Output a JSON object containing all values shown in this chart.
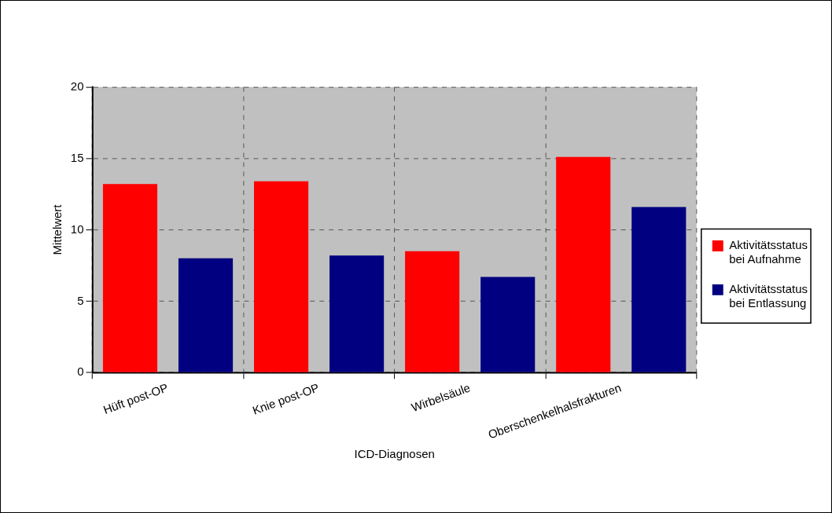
{
  "chart_data": {
    "type": "bar",
    "xlabel": "ICD-Diagnosen",
    "ylabel": "Mittelwert",
    "categories": [
      "Hüft post-OP",
      "Knie post-OP",
      "Wirbelsäule",
      "Oberschenkelhalsfrakturen"
    ],
    "series": [
      {
        "name": "Aktivitätsstatus bei Aufnahme",
        "color": "#ff0000",
        "values": [
          13.2,
          13.4,
          8.5,
          15.1
        ]
      },
      {
        "name": "Aktivitätsstatus bei Entlassung",
        "color": "#000080",
        "values": [
          8.0,
          8.2,
          6.7,
          11.6
        ]
      }
    ],
    "ylim": [
      0,
      20
    ],
    "yticks": [
      0,
      5,
      10,
      15,
      20
    ],
    "grid": true,
    "legend": "right"
  }
}
